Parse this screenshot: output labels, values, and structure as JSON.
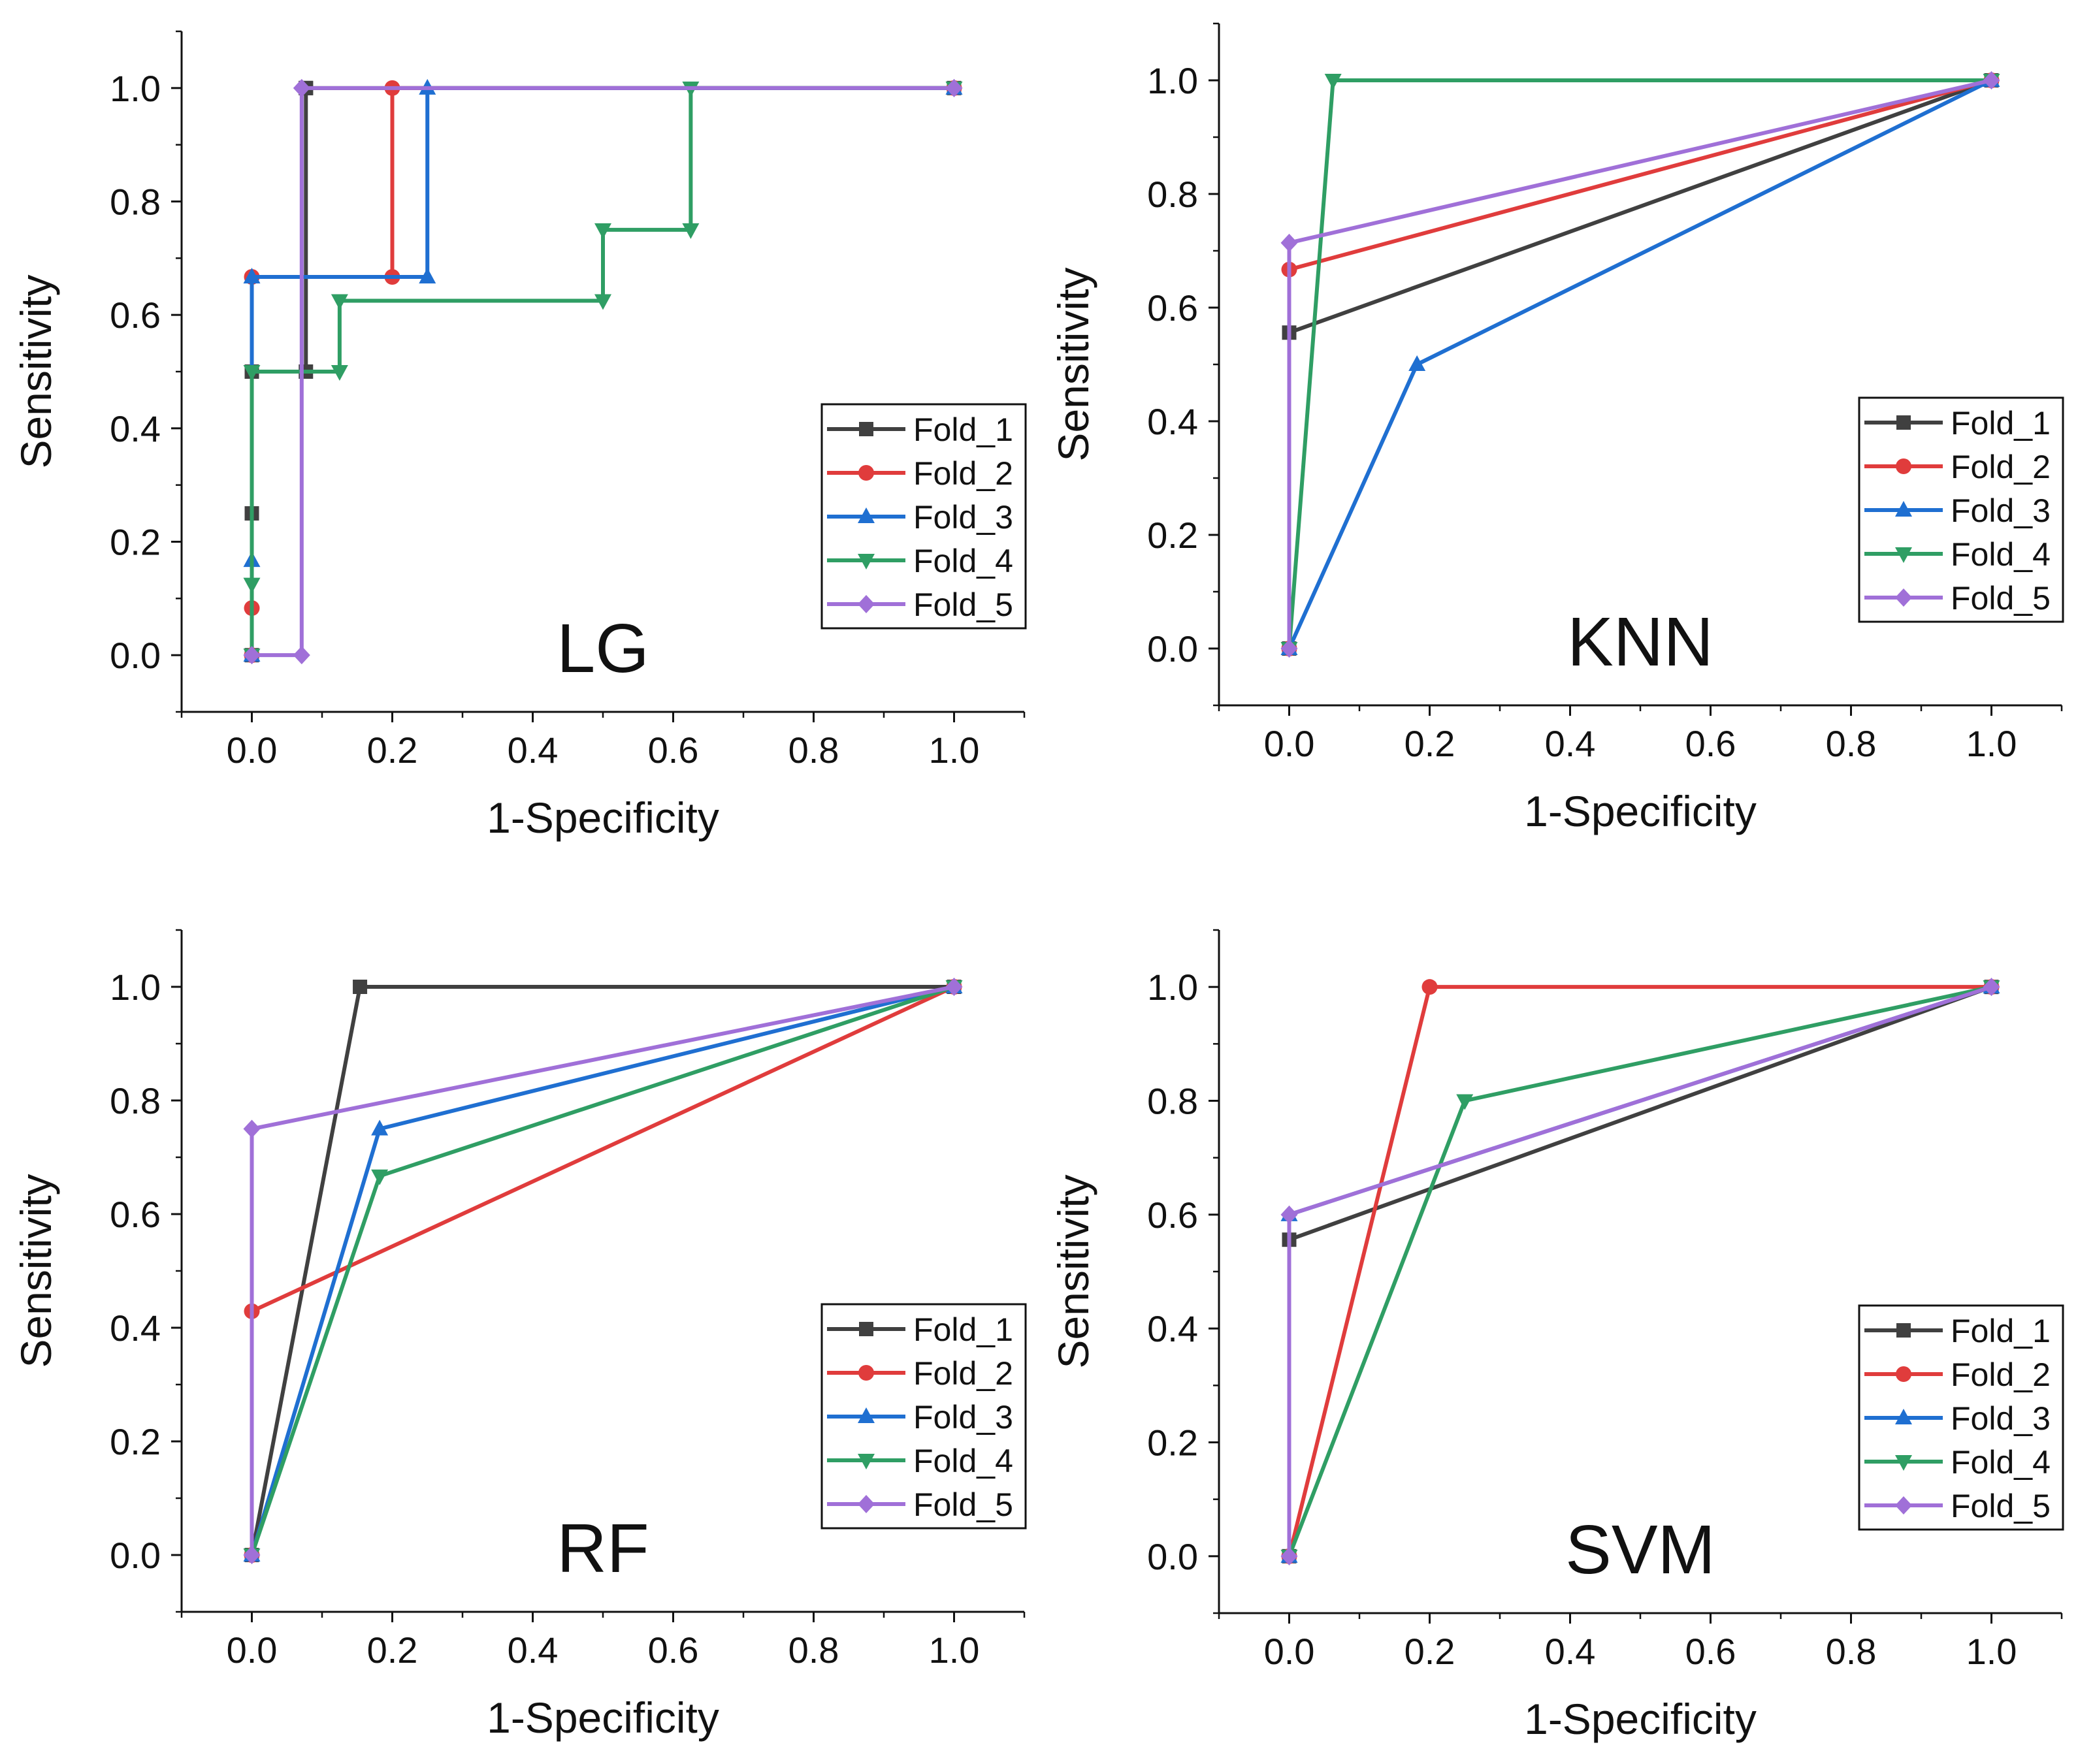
{
  "figure": {
    "layout": "2x2 grid of ROC curves"
  },
  "colors": {
    "Fold_1": "#404040",
    "Fold_2": "#e03c3c",
    "Fold_3": "#1f6fd1",
    "Fold_4": "#2f9e64",
    "Fold_5": "#a070d8",
    "axis": "#111111"
  },
  "chart_data": [
    {
      "type": "line",
      "title": "LG",
      "xlabel": "1-Specificity",
      "ylabel": "Sensitivity",
      "xlim": [
        -0.1,
        1.1
      ],
      "ylim": [
        -0.1,
        1.1
      ],
      "xticks": [
        "0.0",
        "0.2",
        "0.4",
        "0.6",
        "0.8",
        "1.0"
      ],
      "yticks": [
        "0.0",
        "0.2",
        "0.4",
        "0.6",
        "0.8",
        "1.0"
      ],
      "legend": "bottom-right",
      "series": [
        {
          "name": "Fold_1",
          "marker": "square",
          "points": [
            [
              0,
              0
            ],
            [
              0,
              0.25
            ],
            [
              0,
              0.5
            ],
            [
              0.077,
              0.5
            ],
            [
              0.077,
              1.0
            ],
            [
              0.077,
              1.0
            ],
            [
              1.0,
              1.0
            ]
          ]
        },
        {
          "name": "Fold_2",
          "marker": "circle",
          "points": [
            [
              0,
              0
            ],
            [
              0,
              0.083
            ],
            [
              0,
              0.667
            ],
            [
              0.2,
              0.667
            ],
            [
              0.2,
              1.0
            ],
            [
              1.0,
              1.0
            ]
          ]
        },
        {
          "name": "Fold_3",
          "marker": "triangle-up",
          "points": [
            [
              0,
              0
            ],
            [
              0,
              0.167
            ],
            [
              0,
              0.667
            ],
            [
              0.25,
              0.667
            ],
            [
              0.25,
              1.0
            ],
            [
              1.0,
              1.0
            ]
          ]
        },
        {
          "name": "Fold_4",
          "marker": "triangle-down",
          "points": [
            [
              0,
              0
            ],
            [
              0,
              0.125
            ],
            [
              0,
              0.5
            ],
            [
              0.125,
              0.5
            ],
            [
              0.125,
              0.625
            ],
            [
              0.5,
              0.625
            ],
            [
              0.5,
              0.75
            ],
            [
              0.625,
              0.75
            ],
            [
              0.625,
              1.0
            ],
            [
              1.0,
              1.0
            ]
          ]
        },
        {
          "name": "Fold_5",
          "marker": "diamond",
          "points": [
            [
              0,
              0
            ],
            [
              0.071,
              0
            ],
            [
              0.071,
              1.0
            ],
            [
              1.0,
              1.0
            ]
          ]
        }
      ]
    },
    {
      "type": "line",
      "title": "KNN",
      "xlabel": "1-Specificity",
      "ylabel": "Sensitivity",
      "xlim": [
        -0.1,
        1.1
      ],
      "ylim": [
        -0.1,
        1.1
      ],
      "xticks": [
        "0.0",
        "0.2",
        "0.4",
        "0.6",
        "0.8",
        "1.0"
      ],
      "yticks": [
        "0.0",
        "0.2",
        "0.4",
        "0.6",
        "0.8",
        "1.0"
      ],
      "legend": "bottom-right",
      "series": [
        {
          "name": "Fold_1",
          "marker": "square",
          "points": [
            [
              0,
              0
            ],
            [
              0,
              0.556
            ],
            [
              1.0,
              1.0
            ]
          ]
        },
        {
          "name": "Fold_2",
          "marker": "circle",
          "points": [
            [
              0,
              0
            ],
            [
              0,
              0.667
            ],
            [
              1.0,
              1.0
            ]
          ]
        },
        {
          "name": "Fold_3",
          "marker": "triangle-up",
          "points": [
            [
              0,
              0
            ],
            [
              0.182,
              0.5
            ],
            [
              1.0,
              1.0
            ]
          ]
        },
        {
          "name": "Fold_4",
          "marker": "triangle-down",
          "points": [
            [
              0,
              0
            ],
            [
              0.0625,
              1.0
            ],
            [
              1.0,
              1.0
            ]
          ]
        },
        {
          "name": "Fold_5",
          "marker": "diamond",
          "points": [
            [
              0,
              0
            ],
            [
              0,
              0.714
            ],
            [
              1.0,
              1.0
            ]
          ]
        }
      ]
    },
    {
      "type": "line",
      "title": "RF",
      "xlabel": "1-Specificity",
      "ylabel": "Sensitivity",
      "xlim": [
        -0.1,
        1.1
      ],
      "ylim": [
        -0.1,
        1.1
      ],
      "xticks": [
        "0.0",
        "0.2",
        "0.4",
        "0.6",
        "0.8",
        "1.0"
      ],
      "yticks": [
        "0.0",
        "0.2",
        "0.4",
        "0.6",
        "0.8",
        "1.0"
      ],
      "legend": "bottom-right",
      "series": [
        {
          "name": "Fold_1",
          "marker": "square",
          "points": [
            [
              0,
              0
            ],
            [
              0.154,
              1.0
            ],
            [
              1.0,
              1.0
            ]
          ]
        },
        {
          "name": "Fold_2",
          "marker": "circle",
          "points": [
            [
              0,
              0
            ],
            [
              0,
              0.429
            ],
            [
              1.0,
              1.0
            ]
          ]
        },
        {
          "name": "Fold_3",
          "marker": "triangle-up",
          "points": [
            [
              0,
              0
            ],
            [
              0.182,
              0.75
            ],
            [
              1.0,
              1.0
            ]
          ]
        },
        {
          "name": "Fold_4",
          "marker": "triangle-down",
          "points": [
            [
              0,
              0
            ],
            [
              0.182,
              0.667
            ],
            [
              1.0,
              1.0
            ]
          ]
        },
        {
          "name": "Fold_5",
          "marker": "diamond",
          "points": [
            [
              0,
              0
            ],
            [
              0,
              0.75
            ],
            [
              1.0,
              1.0
            ]
          ]
        }
      ]
    },
    {
      "type": "line",
      "title": "SVM",
      "xlabel": "1-Specificity",
      "ylabel": "Sensitivity",
      "xlim": [
        -0.1,
        1.1
      ],
      "ylim": [
        -0.1,
        1.1
      ],
      "xticks": [
        "0.0",
        "0.2",
        "0.4",
        "0.6",
        "0.8",
        "1.0"
      ],
      "yticks": [
        "0.0",
        "0.2",
        "0.4",
        "0.6",
        "0.8",
        "1.0"
      ],
      "legend": "bottom-right",
      "series": [
        {
          "name": "Fold_1",
          "marker": "square",
          "points": [
            [
              0,
              0
            ],
            [
              0,
              0.556
            ],
            [
              1.0,
              1.0
            ]
          ]
        },
        {
          "name": "Fold_2",
          "marker": "circle",
          "points": [
            [
              0,
              0
            ],
            [
              0.2,
              1.0
            ],
            [
              1.0,
              1.0
            ]
          ]
        },
        {
          "name": "Fold_3",
          "marker": "triangle-up",
          "points": [
            [
              0,
              0
            ],
            [
              0,
              0.6
            ],
            [
              1.0,
              1.0
            ]
          ]
        },
        {
          "name": "Fold_4",
          "marker": "triangle-down",
          "points": [
            [
              0,
              0
            ],
            [
              0.25,
              0.8
            ],
            [
              1.0,
              1.0
            ]
          ]
        },
        {
          "name": "Fold_5",
          "marker": "diamond",
          "points": [
            [
              0,
              0
            ],
            [
              0,
              0.6
            ],
            [
              1.0,
              1.0
            ]
          ]
        }
      ]
    }
  ]
}
